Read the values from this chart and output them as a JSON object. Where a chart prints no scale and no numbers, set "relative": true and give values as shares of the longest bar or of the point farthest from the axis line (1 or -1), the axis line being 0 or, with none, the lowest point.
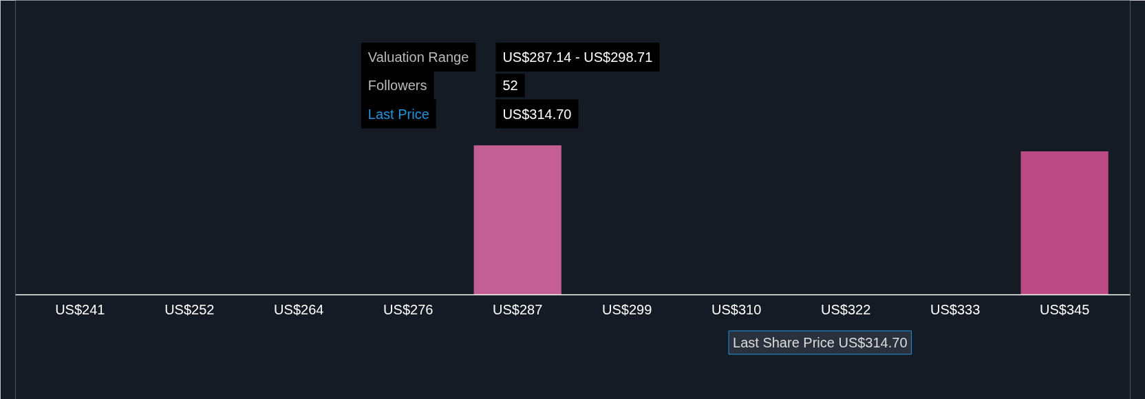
{
  "chart_data": {
    "type": "bar",
    "relative": true,
    "categories": [
      "US$241",
      "US$252",
      "US$264",
      "US$276",
      "US$287",
      "US$299",
      "US$310",
      "US$322",
      "US$333",
      "US$345"
    ],
    "values": [
      0,
      0,
      0,
      0,
      1,
      0,
      0,
      0,
      0,
      0.96
    ],
    "colors": [
      "#c45f94",
      "#c45f94",
      "#c45f94",
      "#c45f94",
      "#c45f94",
      "#c45f94",
      "#c45f94",
      "#c45f94",
      "#c45f94",
      "#bc4a84"
    ],
    "annotations": [
      "Valuation Range",
      "US$287.14 - US$298.71",
      "Followers",
      "52",
      "Last Price",
      "US$314.70",
      "Last Share Price US$314.70"
    ],
    "grid": false
  }
}
